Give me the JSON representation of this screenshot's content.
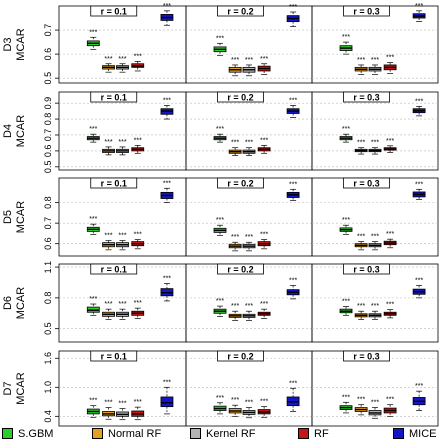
{
  "chart_data": {
    "type": "boxplot",
    "grid": true,
    "legend_position": "bottom",
    "series": [
      {
        "name": "S.GBM",
        "color": "#2ecc2e"
      },
      {
        "name": "Normal RF",
        "color": "#e8a020"
      },
      {
        "name": "Kernel RF",
        "color": "#b4b4b4"
      },
      {
        "name": "RF",
        "color": "#c81414"
      },
      {
        "name": "MICE",
        "color": "#1414c8"
      }
    ],
    "col_labels": [
      "r = 0.1",
      "r = 0.2",
      "r = 0.3"
    ],
    "rows": [
      {
        "label_line1": "D3",
        "label_line2": "MCAR",
        "ylim": [
          0.48,
          0.8
        ],
        "ticks": [
          0.5,
          0.6,
          0.7
        ],
        "tick_labels": [
          "0.5",
          "0.6",
          "0.7"
        ],
        "panels": [
          {
            "boxes": [
              {
                "q1": 0.635,
                "median": 0.645,
                "q3": 0.655,
                "low": 0.62,
                "high": 0.67,
                "sig": "***"
              },
              {
                "q1": 0.538,
                "median": 0.545,
                "q3": 0.552,
                "low": 0.525,
                "high": 0.56,
                "sig": "***"
              },
              {
                "q1": 0.538,
                "median": 0.545,
                "q3": 0.552,
                "low": 0.525,
                "high": 0.56,
                "sig": "***"
              },
              {
                "q1": 0.545,
                "median": 0.55,
                "q3": 0.56,
                "low": 0.53,
                "high": 0.57,
                "sig": "***"
              },
              {
                "q1": 0.74,
                "median": 0.752,
                "q3": 0.765,
                "low": 0.72,
                "high": 0.78,
                "sig": "***"
              }
            ]
          },
          {
            "boxes": [
              {
                "q1": 0.61,
                "median": 0.62,
                "q3": 0.63,
                "low": 0.595,
                "high": 0.645,
                "sig": "***"
              },
              {
                "q1": 0.525,
                "median": 0.535,
                "q3": 0.545,
                "low": 0.51,
                "high": 0.555,
                "sig": "***"
              },
              {
                "q1": 0.525,
                "median": 0.535,
                "q3": 0.545,
                "low": 0.51,
                "high": 0.555,
                "sig": "***"
              },
              {
                "q1": 0.53,
                "median": 0.54,
                "q3": 0.55,
                "low": 0.515,
                "high": 0.56,
                "sig": "***"
              },
              {
                "q1": 0.735,
                "median": 0.748,
                "q3": 0.76,
                "low": 0.715,
                "high": 0.775,
                "sig": "***"
              }
            ]
          },
          {
            "boxes": [
              {
                "q1": 0.615,
                "median": 0.625,
                "q3": 0.635,
                "low": 0.6,
                "high": 0.65,
                "sig": "***"
              },
              {
                "q1": 0.53,
                "median": 0.537,
                "q3": 0.545,
                "low": 0.515,
                "high": 0.555,
                "sig": "***"
              },
              {
                "q1": 0.53,
                "median": 0.537,
                "q3": 0.545,
                "low": 0.515,
                "high": 0.555,
                "sig": "***"
              },
              {
                "q1": 0.535,
                "median": 0.545,
                "q3": 0.555,
                "low": 0.52,
                "high": 0.565,
                "sig": "***"
              },
              {
                "q1": 0.75,
                "median": 0.758,
                "q3": 0.768,
                "low": 0.735,
                "high": 0.78,
                "sig": "***"
              }
            ]
          }
        ]
      },
      {
        "label_line1": "D4",
        "label_line2": "MCAR",
        "ylim": [
          0.48,
          0.97
        ],
        "ticks": [
          0.5,
          0.6,
          0.7,
          0.8,
          0.9
        ],
        "tick_labels": [
          "0.5",
          "0.6",
          "0.7",
          "0.8",
          "0.9"
        ],
        "panels": [
          {
            "boxes": [
              {
                "q1": 0.67,
                "median": 0.68,
                "q3": 0.69,
                "low": 0.655,
                "high": 0.705,
                "sig": "***"
              },
              {
                "q1": 0.59,
                "median": 0.6,
                "q3": 0.61,
                "low": 0.575,
                "high": 0.625,
                "sig": "***"
              },
              {
                "q1": 0.59,
                "median": 0.6,
                "q3": 0.61,
                "low": 0.575,
                "high": 0.625,
                "sig": "***"
              },
              {
                "q1": 0.6,
                "median": 0.61,
                "q3": 0.62,
                "low": 0.585,
                "high": 0.635,
                "sig": "***"
              },
              {
                "q1": 0.83,
                "median": 0.85,
                "q3": 0.865,
                "low": 0.8,
                "high": 0.885,
                "sig": "***"
              }
            ]
          },
          {
            "boxes": [
              {
                "q1": 0.67,
                "median": 0.68,
                "q3": 0.69,
                "low": 0.655,
                "high": 0.705,
                "sig": "***"
              },
              {
                "q1": 0.585,
                "median": 0.595,
                "q3": 0.605,
                "low": 0.57,
                "high": 0.62,
                "sig": "***"
              },
              {
                "q1": 0.585,
                "median": 0.595,
                "q3": 0.605,
                "low": 0.57,
                "high": 0.62,
                "sig": "***"
              },
              {
                "q1": 0.6,
                "median": 0.61,
                "q3": 0.62,
                "low": 0.585,
                "high": 0.635,
                "sig": "***"
              },
              {
                "q1": 0.835,
                "median": 0.85,
                "q3": 0.865,
                "low": 0.81,
                "high": 0.885,
                "sig": "***"
              }
            ]
          },
          {
            "boxes": [
              {
                "q1": 0.67,
                "median": 0.68,
                "q3": 0.69,
                "low": 0.655,
                "high": 0.705,
                "sig": "***"
              },
              {
                "q1": 0.595,
                "median": 0.602,
                "q3": 0.61,
                "low": 0.58,
                "high": 0.62,
                "sig": "***"
              },
              {
                "q1": 0.595,
                "median": 0.602,
                "q3": 0.61,
                "low": 0.58,
                "high": 0.62,
                "sig": "***"
              },
              {
                "q1": 0.605,
                "median": 0.612,
                "q3": 0.62,
                "low": 0.59,
                "high": 0.632,
                "sig": "***"
              },
              {
                "q1": 0.84,
                "median": 0.852,
                "q3": 0.865,
                "low": 0.82,
                "high": 0.88,
                "sig": "***"
              }
            ]
          }
        ]
      },
      {
        "label_line1": "D5",
        "label_line2": "MCAR",
        "ylim": [
          0.54,
          0.92
        ],
        "ticks": [
          0.6,
          0.7,
          0.8
        ],
        "tick_labels": [
          "0.6",
          "0.7",
          "0.8"
        ],
        "panels": [
          {
            "boxes": [
              {
                "q1": 0.66,
                "median": 0.67,
                "q3": 0.68,
                "low": 0.645,
                "high": 0.695,
                "sig": "***"
              },
              {
                "q1": 0.585,
                "median": 0.595,
                "q3": 0.605,
                "low": 0.57,
                "high": 0.615,
                "sig": "***"
              },
              {
                "q1": 0.585,
                "median": 0.595,
                "q3": 0.605,
                "low": 0.57,
                "high": 0.615,
                "sig": "***"
              },
              {
                "q1": 0.59,
                "median": 0.6,
                "q3": 0.61,
                "low": 0.575,
                "high": 0.62,
                "sig": "***"
              },
              {
                "q1": 0.82,
                "median": 0.835,
                "q3": 0.85,
                "low": 0.8,
                "high": 0.87,
                "sig": "***"
              }
            ]
          },
          {
            "boxes": [
              {
                "q1": 0.655,
                "median": 0.665,
                "q3": 0.675,
                "low": 0.64,
                "high": 0.69,
                "sig": "***"
              },
              {
                "q1": 0.58,
                "median": 0.588,
                "q3": 0.597,
                "low": 0.565,
                "high": 0.607,
                "sig": "***"
              },
              {
                "q1": 0.58,
                "median": 0.588,
                "q3": 0.597,
                "low": 0.565,
                "high": 0.607,
                "sig": "***"
              },
              {
                "q1": 0.59,
                "median": 0.6,
                "q3": 0.61,
                "low": 0.575,
                "high": 0.62,
                "sig": "***"
              },
              {
                "q1": 0.825,
                "median": 0.838,
                "q3": 0.85,
                "low": 0.81,
                "high": 0.865,
                "sig": "***"
              }
            ]
          },
          {
            "boxes": [
              {
                "q1": 0.66,
                "median": 0.668,
                "q3": 0.677,
                "low": 0.645,
                "high": 0.69,
                "sig": "***"
              },
              {
                "q1": 0.585,
                "median": 0.592,
                "q3": 0.6,
                "low": 0.57,
                "high": 0.61,
                "sig": "***"
              },
              {
                "q1": 0.585,
                "median": 0.592,
                "q3": 0.6,
                "low": 0.57,
                "high": 0.61,
                "sig": "***"
              },
              {
                "q1": 0.595,
                "median": 0.603,
                "q3": 0.612,
                "low": 0.58,
                "high": 0.622,
                "sig": "***"
              },
              {
                "q1": 0.828,
                "median": 0.84,
                "q3": 0.852,
                "low": 0.815,
                "high": 0.865,
                "sig": "***"
              }
            ]
          }
        ]
      },
      {
        "label_line1": "D6",
        "label_line2": "MCAR",
        "ylim": [
          0.37,
          1.13
        ],
        "ticks": [
          0.5,
          0.8,
          1.1
        ],
        "tick_labels": [
          "0.5",
          "0.8",
          "1.1"
        ],
        "panels": [
          {
            "boxes": [
              {
                "q1": 0.66,
                "median": 0.68,
                "q3": 0.71,
                "low": 0.63,
                "high": 0.74,
                "sig": "***"
              },
              {
                "q1": 0.62,
                "median": 0.64,
                "q3": 0.66,
                "low": 0.59,
                "high": 0.69,
                "sig": "***"
              },
              {
                "q1": 0.62,
                "median": 0.64,
                "q3": 0.66,
                "low": 0.59,
                "high": 0.69,
                "sig": "***"
              },
              {
                "q1": 0.63,
                "median": 0.65,
                "q3": 0.67,
                "low": 0.6,
                "high": 0.7,
                "sig": "***"
              },
              {
                "q1": 0.82,
                "median": 0.85,
                "q3": 0.89,
                "low": 0.77,
                "high": 0.94,
                "sig": "***"
              }
            ]
          },
          {
            "boxes": [
              {
                "q1": 0.65,
                "median": 0.67,
                "q3": 0.69,
                "low": 0.62,
                "high": 0.72,
                "sig": "***"
              },
              {
                "q1": 0.61,
                "median": 0.625,
                "q3": 0.64,
                "low": 0.58,
                "high": 0.67,
                "sig": "***"
              },
              {
                "q1": 0.61,
                "median": 0.625,
                "q3": 0.64,
                "low": 0.58,
                "high": 0.67,
                "sig": "***"
              },
              {
                "q1": 0.63,
                "median": 0.645,
                "q3": 0.66,
                "low": 0.6,
                "high": 0.69,
                "sig": "***"
              },
              {
                "q1": 0.83,
                "median": 0.855,
                "q3": 0.88,
                "low": 0.79,
                "high": 0.92,
                "sig": "***"
              }
            ]
          },
          {
            "boxes": [
              {
                "q1": 0.655,
                "median": 0.67,
                "q3": 0.69,
                "low": 0.63,
                "high": 0.715,
                "sig": "***"
              },
              {
                "q1": 0.615,
                "median": 0.63,
                "q3": 0.645,
                "low": 0.59,
                "high": 0.67,
                "sig": "***"
              },
              {
                "q1": 0.615,
                "median": 0.63,
                "q3": 0.645,
                "low": 0.59,
                "high": 0.67,
                "sig": "***"
              },
              {
                "q1": 0.63,
                "median": 0.645,
                "q3": 0.66,
                "low": 0.605,
                "high": 0.685,
                "sig": "***"
              },
              {
                "q1": 0.835,
                "median": 0.86,
                "q3": 0.885,
                "low": 0.8,
                "high": 0.92,
                "sig": "***"
              }
            ]
          }
        ]
      },
      {
        "label_line1": "D7",
        "label_line2": "MCAR",
        "ylim": [
          0.2,
          1.75
        ],
        "ticks": [
          0.4,
          1.0,
          1.6
        ],
        "tick_labels": [
          "0.4",
          "1.0",
          "1.6"
        ],
        "panels": [
          {
            "boxes": [
              {
                "q1": 0.45,
                "median": 0.5,
                "q3": 0.55,
                "low": 0.38,
                "high": 0.62,
                "sig": "***"
              },
              {
                "q1": 0.41,
                "median": 0.45,
                "q3": 0.5,
                "low": 0.34,
                "high": 0.58,
                "sig": "***"
              },
              {
                "q1": 0.4,
                "median": 0.44,
                "q3": 0.49,
                "low": 0.33,
                "high": 0.56,
                "sig": "***"
              },
              {
                "q1": 0.4,
                "median": 0.45,
                "q3": 0.51,
                "low": 0.33,
                "high": 0.59,
                "sig": "***"
              },
              {
                "q1": 0.6,
                "median": 0.68,
                "q3": 0.8,
                "low": 0.45,
                "high": 1.0,
                "sig": "***"
              }
            ]
          },
          {
            "boxes": [
              {
                "q1": 0.52,
                "median": 0.56,
                "q3": 0.61,
                "low": 0.45,
                "high": 0.68,
                "sig": "***"
              },
              {
                "q1": 0.47,
                "median": 0.51,
                "q3": 0.56,
                "low": 0.4,
                "high": 0.63,
                "sig": "***"
              },
              {
                "q1": 0.44,
                "median": 0.48,
                "q3": 0.52,
                "low": 0.37,
                "high": 0.58,
                "sig": "***"
              },
              {
                "q1": 0.45,
                "median": 0.49,
                "q3": 0.54,
                "low": 0.38,
                "high": 0.6,
                "sig": "***"
              },
              {
                "q1": 0.62,
                "median": 0.7,
                "q3": 0.8,
                "low": 0.5,
                "high": 0.98,
                "sig": "***"
              }
            ]
          },
          {
            "boxes": [
              {
                "q1": 0.54,
                "median": 0.58,
                "q3": 0.62,
                "low": 0.47,
                "high": 0.69,
                "sig": "***"
              },
              {
                "q1": 0.5,
                "median": 0.54,
                "q3": 0.58,
                "low": 0.43,
                "high": 0.64,
                "sig": "***"
              },
              {
                "q1": 0.43,
                "median": 0.47,
                "q3": 0.52,
                "low": 0.36,
                "high": 0.58,
                "sig": "***"
              },
              {
                "q1": 0.47,
                "median": 0.52,
                "q3": 0.57,
                "low": 0.4,
                "high": 0.64,
                "sig": "***"
              },
              {
                "q1": 0.64,
                "median": 0.71,
                "q3": 0.79,
                "low": 0.52,
                "high": 0.92,
                "sig": "***"
              }
            ]
          }
        ]
      }
    ]
  }
}
